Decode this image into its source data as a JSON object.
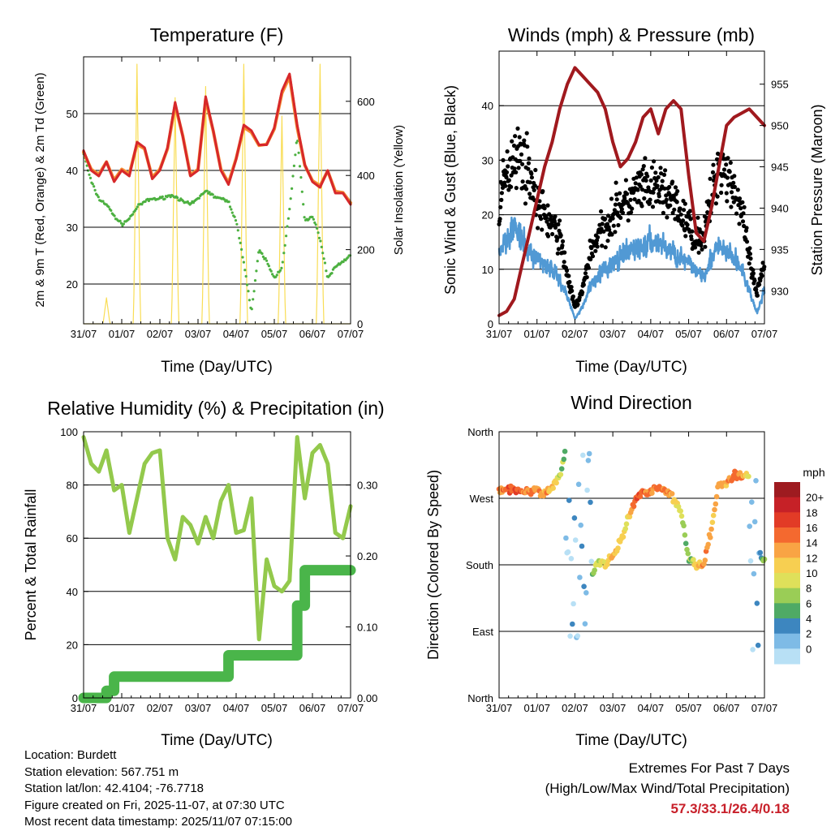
{
  "info": {
    "location": "Location: Burdett",
    "elevation": "Station elevation: 567.751 m",
    "latlon": "Station lat/lon: 42.4104; -76.7718",
    "created": "Figure created on Fri, 2025-11-07, at 07:30 UTC",
    "latest": "Most recent data timestamp: 2025/11/07 07:15:00"
  },
  "extremes": {
    "title": "Extremes For Past 7 Days",
    "subtitle": "(High/Low/Max Wind/Total Precipitation)",
    "values": "57.3/33.1/26.4/0.18"
  },
  "colors": {
    "temp_2m": "#d7282a",
    "temp_9m": "#f58c32",
    "dewpoint": "#4cb040",
    "solar": "#f9dd55",
    "wind": "#5199d4",
    "gust": "#000000",
    "pressure": "#a0191e",
    "rh": "#93c94c",
    "precip": "#4ab54a"
  },
  "chart_data": [
    {
      "type": "line",
      "title": "Temperature (F)",
      "xlabel": "Time (Day/UTC)",
      "ylabel": "2m & 9m T (Red, Orange) & 2m Td (Green)",
      "ylabel_right": "Solar Insolation (Yellow)",
      "x_ticks": [
        "31/07",
        "01/07",
        "02/07",
        "03/07",
        "04/07",
        "05/07",
        "06/07",
        "07/07"
      ],
      "ylim": [
        13,
        60
      ],
      "yticks": [
        20,
        30,
        40,
        50
      ],
      "ylim_right": [
        0,
        720
      ],
      "yticks_right": [
        0,
        200,
        400,
        600
      ],
      "x": [
        0,
        0.2,
        0.4,
        0.6,
        0.8,
        1.0,
        1.2,
        1.4,
        1.6,
        1.8,
        2.0,
        2.2,
        2.4,
        2.6,
        2.8,
        3.0,
        3.2,
        3.4,
        3.6,
        3.8,
        4.0,
        4.2,
        4.4,
        4.6,
        4.8,
        5.0,
        5.2,
        5.4,
        5.6,
        5.8,
        6.0,
        6.2,
        6.4,
        6.6,
        6.8,
        7.0
      ],
      "series": [
        {
          "name": "2m T",
          "values": [
            43.5,
            40,
            39,
            41.5,
            38,
            40,
            39,
            45,
            44,
            38.5,
            40,
            44,
            52,
            46,
            39,
            40,
            53,
            47,
            40,
            37.5,
            42,
            48,
            47,
            44.5,
            44.5,
            47.5,
            54,
            57,
            48,
            41,
            38,
            37,
            40,
            36,
            36,
            34
          ]
        },
        {
          "name": "9m T",
          "values": [
            43.2,
            40.2,
            39.3,
            41.5,
            38.3,
            40.2,
            39.4,
            44.6,
            43.8,
            38.8,
            40.2,
            43.8,
            51.5,
            46.1,
            39.2,
            40.2,
            52.5,
            46.9,
            40.2,
            37.8,
            42.1,
            47.6,
            46.7,
            44.4,
            44.6,
            47.3,
            53.6,
            56.5,
            47.6,
            40.9,
            38.2,
            37.3,
            39.9,
            36.3,
            36.1,
            34.3
          ]
        },
        {
          "name": "2m Td",
          "values": [
            43,
            38,
            35,
            34,
            32,
            30.5,
            31.5,
            33.5,
            34.5,
            35,
            35,
            35.5,
            35.5,
            34.5,
            34,
            35,
            36.5,
            35.5,
            35,
            34.5,
            31,
            24,
            15,
            26,
            24,
            21,
            23,
            33,
            46,
            31,
            32,
            28,
            21,
            23,
            24,
            25
          ]
        },
        {
          "name": "Solar",
          "values": [
            0,
            0,
            0,
            70,
            0,
            0,
            0,
            700,
            0,
            0,
            0,
            0,
            610,
            0,
            0,
            0,
            640,
            0,
            0,
            0,
            0,
            700,
            0,
            0,
            0,
            0,
            560,
            0,
            0,
            0,
            0,
            700,
            0,
            0,
            0,
            0
          ]
        }
      ]
    },
    {
      "type": "scatter",
      "title": "Winds (mph) & Pressure (mb)",
      "xlabel": "Time (Day/UTC)",
      "ylabel": "Sonic Wind & Gust (Blue, Black)",
      "ylabel_right": "Station Pressure (Maroon)",
      "x_ticks": [
        "31/07",
        "01/07",
        "02/07",
        "03/07",
        "04/07",
        "05/07",
        "06/07",
        "07/07"
      ],
      "ylim": [
        0,
        50
      ],
      "yticks": [
        0,
        10,
        20,
        30,
        40
      ],
      "ylim_right": [
        926,
        959
      ],
      "yticks_right": [
        930,
        935,
        940,
        945,
        950,
        955
      ],
      "x": [
        0,
        0.2,
        0.4,
        0.6,
        0.8,
        1.0,
        1.2,
        1.4,
        1.6,
        1.8,
        2.0,
        2.2,
        2.4,
        2.6,
        2.8,
        3.0,
        3.2,
        3.4,
        3.6,
        3.8,
        4.0,
        4.2,
        4.4,
        4.6,
        4.8,
        5.0,
        5.2,
        5.4,
        5.6,
        5.8,
        6.0,
        6.2,
        6.4,
        6.6,
        6.8,
        7.0
      ],
      "series": [
        {
          "name": "Sonic Wind",
          "values": [
            13,
            16,
            18,
            15,
            13,
            12,
            11,
            10,
            8,
            5,
            1,
            3,
            7,
            9,
            10,
            11,
            12,
            13,
            14,
            14,
            15,
            15,
            14,
            13,
            12,
            11,
            10,
            9,
            12,
            14,
            13,
            12,
            10,
            6,
            2,
            6
          ]
        },
        {
          "name": "Gust",
          "values": [
            22,
            27,
            32,
            30,
            28,
            22,
            20,
            18,
            16,
            9,
            3,
            6,
            13,
            16,
            18,
            20,
            22,
            22,
            24,
            25,
            24,
            25,
            24,
            22,
            20,
            18,
            16,
            16,
            23,
            30,
            28,
            25,
            20,
            12,
            5,
            12
          ]
        },
        {
          "name": "Station Pressure",
          "values": [
            927,
            927.5,
            929,
            933,
            937,
            941,
            945,
            948,
            952,
            955,
            957,
            956,
            955,
            954,
            952,
            948,
            945,
            946,
            948,
            951,
            952,
            949,
            952,
            953,
            952,
            944,
            937,
            936,
            940,
            945,
            950,
            951,
            951.5,
            952,
            951,
            950
          ]
        }
      ]
    },
    {
      "type": "line",
      "title": "Relative Humidity (%) & Precipitation (in)",
      "xlabel": "Time (Day/UTC)",
      "ylabel": "Percent & Total Rainfall",
      "x_ticks": [
        "31/07",
        "01/07",
        "02/07",
        "03/07",
        "04/07",
        "05/07",
        "06/07",
        "07/07"
      ],
      "ylim": [
        0,
        100
      ],
      "yticks": [
        0,
        20,
        40,
        60,
        80,
        100
      ],
      "ylim_right": [
        0,
        0.375
      ],
      "yticks_right": [
        "0.00",
        "0.10",
        "0.20",
        "0.30"
      ],
      "x": [
        0,
        0.2,
        0.4,
        0.6,
        0.8,
        1.0,
        1.2,
        1.4,
        1.6,
        1.8,
        2.0,
        2.2,
        2.4,
        2.6,
        2.8,
        3.0,
        3.2,
        3.4,
        3.6,
        3.8,
        4.0,
        4.2,
        4.4,
        4.6,
        4.8,
        5.0,
        5.2,
        5.4,
        5.6,
        5.8,
        6.0,
        6.2,
        6.4,
        6.6,
        6.8,
        7.0
      ],
      "series": [
        {
          "name": "Relative Humidity",
          "values": [
            98,
            88,
            85,
            93,
            78,
            80,
            62,
            75,
            88,
            92,
            93,
            60,
            52,
            68,
            65,
            58,
            68,
            60,
            74,
            80,
            62,
            63,
            75,
            22,
            52,
            42,
            40,
            44,
            98,
            75,
            92,
            95,
            88,
            62,
            60,
            72
          ]
        },
        {
          "name": "Total Precipitation",
          "values": [
            0,
            0,
            0,
            0.01,
            0.03,
            0.03,
            0.03,
            0.03,
            0.03,
            0.03,
            0.03,
            0.03,
            0.03,
            0.03,
            0.03,
            0.03,
            0.03,
            0.03,
            0.03,
            0.06,
            0.06,
            0.06,
            0.06,
            0.06,
            0.06,
            0.06,
            0.06,
            0.06,
            0.13,
            0.18,
            0.18,
            0.18,
            0.18,
            0.18,
            0.18,
            0.18
          ]
        }
      ]
    },
    {
      "type": "scatter",
      "title": "Wind Direction",
      "xlabel": "Time (Day/UTC)",
      "ylabel": "Direction (Colored By Speed)",
      "x_ticks": [
        "31/07",
        "01/07",
        "02/07",
        "03/07",
        "04/07",
        "05/07",
        "06/07",
        "07/07"
      ],
      "ylim": [
        0,
        360
      ],
      "ytick_labels": [
        "North",
        "East",
        "South",
        "West",
        "North"
      ],
      "yticks": [
        0,
        90,
        180,
        270,
        360
      ],
      "colorbar": {
        "label": "mph",
        "labels": [
          "20+",
          "18",
          "16",
          "14",
          "12",
          "10",
          "8",
          "6",
          "4",
          "2",
          "0"
        ],
        "colors": [
          "#9e1b20",
          "#c62127",
          "#e23b26",
          "#f4692f",
          "#f9a444",
          "#f7cf51",
          "#dfe05a",
          "#9acd56",
          "#4faa65",
          "#3d86bf",
          "#7ebbe6",
          "#b8e0f5"
        ]
      },
      "x": [
        0,
        0.2,
        0.4,
        0.6,
        0.8,
        1.0,
        1.2,
        1.4,
        1.6,
        1.8,
        2.0,
        2.2,
        2.4,
        2.6,
        2.8,
        3.0,
        3.2,
        3.4,
        3.6,
        3.8,
        4.0,
        4.2,
        4.4,
        4.6,
        4.8,
        5.0,
        5.2,
        5.4,
        5.6,
        5.8,
        6.0,
        6.2,
        6.4,
        6.6,
        6.8,
        7.0
      ],
      "series": [
        {
          "name": "Direction (deg)",
          "values": [
            280,
            283,
            282,
            281,
            278,
            282,
            278,
            285,
            300,
            345,
            120,
            190,
            160,
            185,
            180,
            190,
            210,
            240,
            270,
            278,
            280,
            285,
            282,
            270,
            250,
            190,
            180,
            180,
            230,
            290,
            290,
            300,
            300,
            300,
            200,
            185
          ]
        },
        {
          "name": "Speed (mph)",
          "values": [
            16,
            17,
            18,
            17,
            16,
            16,
            15,
            14,
            10,
            6,
            2,
            3,
            6,
            10,
            12,
            14,
            13,
            12,
            18,
            17,
            16,
            17,
            16,
            14,
            10,
            8,
            12,
            16,
            14,
            15,
            15,
            17,
            16,
            10,
            3,
            8
          ]
        }
      ]
    }
  ]
}
